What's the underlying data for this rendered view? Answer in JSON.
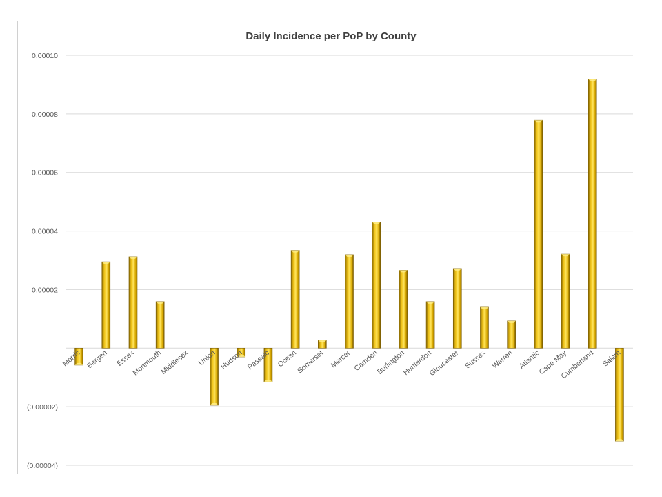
{
  "chart_data": {
    "type": "bar",
    "title": "Daily Incidence per PoP by County",
    "xlabel": "",
    "ylabel": "",
    "categories": [
      "Morris",
      "Bergen",
      "Essex",
      "Monmouth",
      "Middlesex",
      "Union",
      "Hudson",
      "Passaic",
      "Ocean",
      "Somerset",
      "Mercer",
      "Camden",
      "Burlington",
      "Hunterdon",
      "Gloucester",
      "Sussex",
      "Warren",
      "Atlantic",
      "Cape May",
      "Cumberland",
      "Salem"
    ],
    "values": [
      -5.8e-06,
      2.95e-05,
      3.12e-05,
      1.59e-05,
      0,
      -1.95e-05,
      -3e-06,
      -1.15e-05,
      3.34e-05,
      2.7e-06,
      3.19e-05,
      4.31e-05,
      2.66e-05,
      1.59e-05,
      2.72e-05,
      1.4e-05,
      9.3e-06,
      7.78e-05,
      3.21e-05,
      9.18e-05,
      -3.18e-05
    ],
    "ylim": [
      -4e-05,
      0.0001
    ],
    "yticks": [
      0.0001,
      8e-05,
      6e-05,
      4e-05,
      2e-05,
      0,
      -2e-05,
      -4e-05
    ],
    "ytick_labels": [
      "0.00010",
      "0.00008",
      "0.00006",
      "0.00004",
      "0.00002",
      "-",
      "(0.00002)",
      "(0.00004)"
    ],
    "grid": true,
    "legend": "none",
    "colors": {
      "bar": "#e6b800",
      "bar_light": "#ffe45c",
      "bar_dark": "#8a6a00",
      "grid": "#d9d9d9",
      "text": "#595959"
    }
  }
}
